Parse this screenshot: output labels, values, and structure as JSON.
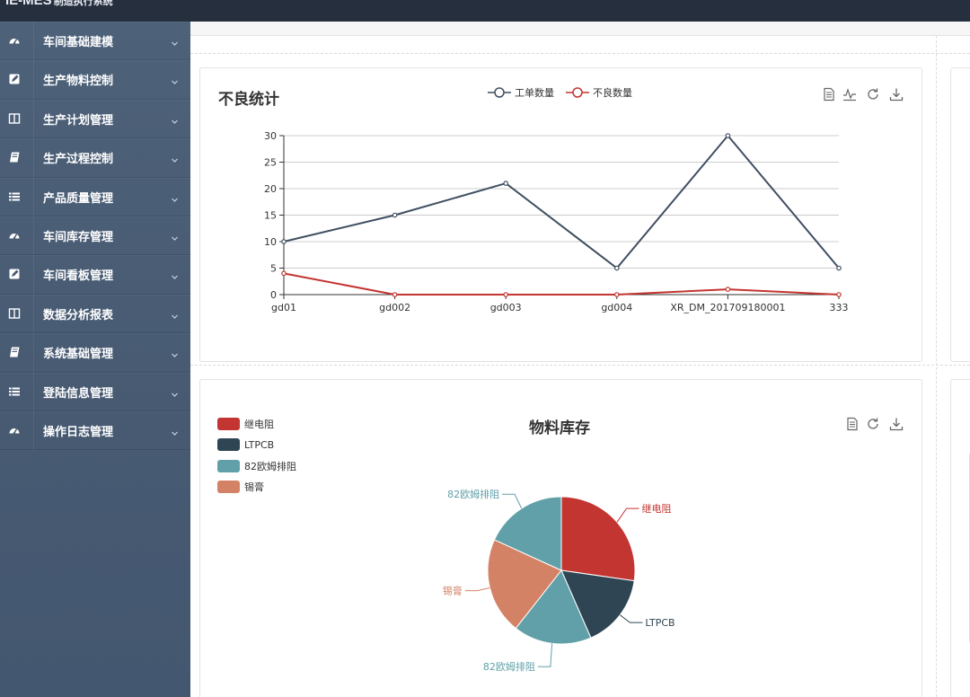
{
  "header": {
    "brand": "IE-MES",
    "brand_sub": "制造执行系统"
  },
  "sidebar": {
    "items": [
      {
        "label": "车间基础建模",
        "icon": "dashboard-icon"
      },
      {
        "label": "生产物料控制",
        "icon": "edit-icon"
      },
      {
        "label": "生产计划管理",
        "icon": "columns-icon"
      },
      {
        "label": "生产过程控制",
        "icon": "book-icon"
      },
      {
        "label": "产品质量管理",
        "icon": "list-icon"
      },
      {
        "label": "车间库存管理",
        "icon": "dashboard-icon"
      },
      {
        "label": "车间看板管理",
        "icon": "edit-icon"
      },
      {
        "label": "数据分析报表",
        "icon": "columns-icon"
      },
      {
        "label": "系统基础管理",
        "icon": "book-icon"
      },
      {
        "label": "登陆信息管理",
        "icon": "list-icon"
      },
      {
        "label": "操作日志管理",
        "icon": "dashboard-icon"
      }
    ]
  },
  "line_card": {
    "title": "不良统计",
    "tools": [
      "data-view-icon",
      "line-toggle-icon",
      "restore-icon",
      "download-icon"
    ]
  },
  "pie_card": {
    "title": "物料库存",
    "tools": [
      "data-view-icon",
      "restore-icon",
      "download-icon"
    ]
  },
  "colors": {
    "series_work": "#3f4e60",
    "series_defect": "#c23531",
    "slice_1": "#c23531",
    "slice_2": "#2f4554",
    "slice_3": "#61a0a8",
    "slice_4": "#d48265"
  },
  "chart_data": [
    {
      "type": "line",
      "title": "不良统计",
      "categories": [
        "gd01",
        "gd002",
        "gd003",
        "gd004",
        "XR_DM_201709180001",
        "333"
      ],
      "series": [
        {
          "name": "工单数量",
          "values": [
            10,
            15,
            21,
            5,
            30,
            5
          ]
        },
        {
          "name": "不良数量",
          "values": [
            4,
            0,
            0,
            0,
            1,
            0
          ]
        }
      ],
      "ylim": [
        0,
        30
      ],
      "yticks": [
        0,
        5,
        10,
        15,
        20,
        25,
        30
      ],
      "legend": "top-center",
      "grid": true
    },
    {
      "type": "pie",
      "title": "物料库存",
      "legend_entries": [
        "继电阻",
        "LTPCB",
        "82欧姆排阻",
        "锡膏"
      ],
      "slices": [
        {
          "name": "继电阻",
          "value": 27
        },
        {
          "name": "LTPCB",
          "value": 16
        },
        {
          "name": "82欧姆排阻",
          "value": 17
        },
        {
          "name": "锡膏",
          "value": 21
        },
        {
          "name": "82欧姆排阻",
          "value": 18
        }
      ],
      "legend": "top-left"
    }
  ]
}
